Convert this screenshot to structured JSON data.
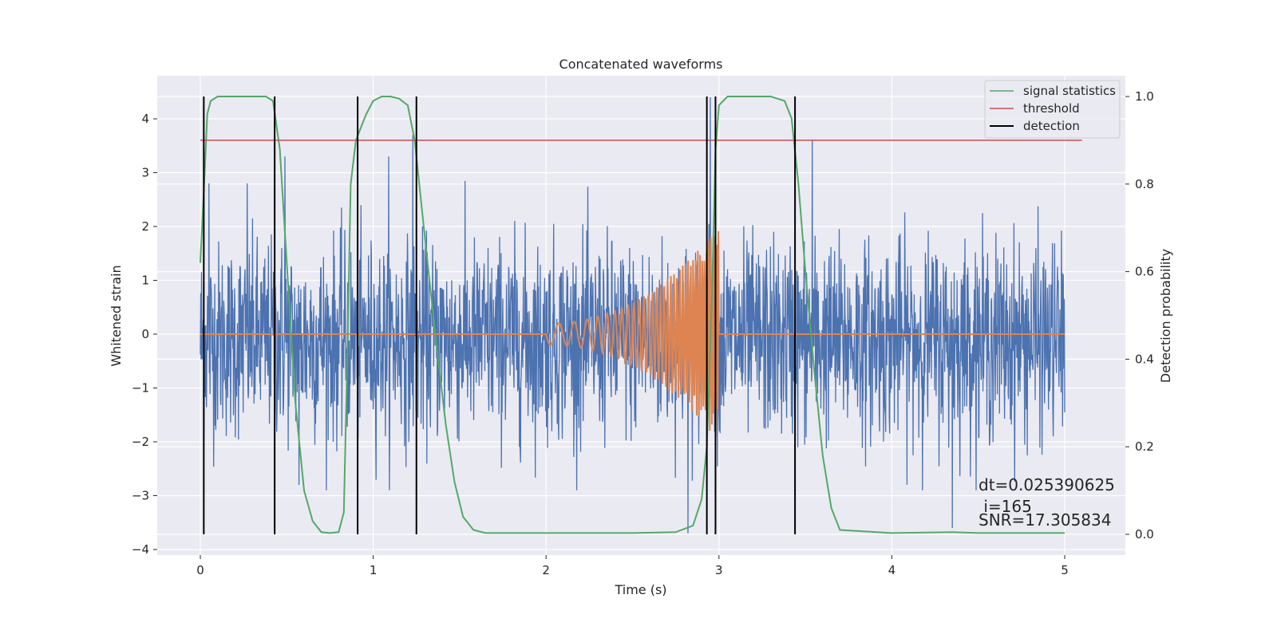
{
  "chart_data": {
    "type": "line",
    "title": "Concatenated waveforms",
    "xlabel": "Time (s)",
    "ylabel": "Whitened strain",
    "y2label": "Detection probability",
    "xlim": [
      -0.25,
      5.35
    ],
    "ylim": [
      -4.1,
      4.7
    ],
    "y2lim": [
      -0.045,
      1.045
    ],
    "xticks": [
      0,
      1,
      2,
      3,
      4,
      5
    ],
    "yticks": [
      -4,
      -3,
      -2,
      -1,
      0,
      1,
      2,
      3,
      4
    ],
    "y2ticks": [
      0.0,
      0.2,
      0.4,
      0.6,
      0.8,
      1.0
    ],
    "xtick_labels": [
      "0",
      "1",
      "2",
      "3",
      "4",
      "5"
    ],
    "ytick_labels": [
      "−4",
      "−3",
      "−2",
      "−1",
      "0",
      "1",
      "2",
      "3",
      "4"
    ],
    "y2tick_labels": [
      "0.0",
      "0.2",
      "0.4",
      "0.6",
      "0.8",
      "1.0"
    ],
    "grid": true,
    "legend_position": "top-right",
    "colors": {
      "strain": "#4c72b0",
      "template": "#dd8452",
      "signal_statistics": "#55a868",
      "threshold": "#c44e52",
      "detection": "#000000",
      "background": "#eaeaf2",
      "grid": "#ffffff"
    },
    "noise": {
      "x_range": [
        0,
        5
      ],
      "typical_amplitude": 1.2,
      "peak_values": [
        {
          "x": 0.05,
          "y": 2.8
        },
        {
          "x": 0.27,
          "y": 2.8
        },
        {
          "x": 0.49,
          "y": 3.3
        },
        {
          "x": 0.57,
          "y": -2.8
        },
        {
          "x": 1.09,
          "y": 3.3
        },
        {
          "x": 1.23,
          "y": 3.7
        },
        {
          "x": 2.95,
          "y": 4.4
        },
        {
          "x": 2.82,
          "y": -3.7
        },
        {
          "x": 3.54,
          "y": 3.6
        },
        {
          "x": 4.35,
          "y": -3.6
        }
      ]
    },
    "template": {
      "baseline": 0.0,
      "chirp_start": 2.0,
      "chirp_end": 3.0,
      "start_amplitude": 0.2,
      "end_amplitude": 2.0
    },
    "series": [
      {
        "name": "signal statistics",
        "axis": "right",
        "x": [
          0.0,
          0.02,
          0.04,
          0.06,
          0.1,
          0.2,
          0.3,
          0.38,
          0.42,
          0.46,
          0.5,
          0.55,
          0.6,
          0.65,
          0.7,
          0.75,
          0.8,
          0.83,
          0.85,
          0.87,
          0.9,
          0.93,
          0.96,
          1.0,
          1.05,
          1.1,
          1.15,
          1.2,
          1.24,
          1.28,
          1.32,
          1.37,
          1.42,
          1.47,
          1.52,
          1.58,
          1.65,
          2.0,
          2.5,
          2.75,
          2.85,
          2.9,
          2.93,
          2.96,
          2.98,
          3.0,
          3.05,
          3.1,
          3.2,
          3.3,
          3.38,
          3.42,
          3.46,
          3.5,
          3.55,
          3.6,
          3.65,
          3.7,
          4.0,
          4.35,
          4.5,
          5.0
        ],
        "y": [
          0.62,
          0.78,
          0.96,
          0.99,
          1.0,
          1.0,
          1.0,
          1.0,
          0.99,
          0.88,
          0.62,
          0.3,
          0.1,
          0.03,
          0.005,
          0.003,
          0.005,
          0.05,
          0.4,
          0.8,
          0.9,
          0.93,
          0.96,
          0.99,
          1.0,
          1.0,
          0.995,
          0.98,
          0.9,
          0.75,
          0.6,
          0.42,
          0.25,
          0.12,
          0.04,
          0.01,
          0.003,
          0.003,
          0.003,
          0.005,
          0.02,
          0.08,
          0.2,
          0.55,
          0.88,
          0.98,
          1.0,
          1.0,
          1.0,
          1.0,
          0.99,
          0.95,
          0.8,
          0.6,
          0.38,
          0.18,
          0.06,
          0.01,
          0.003,
          0.005,
          0.003,
          0.003
        ]
      },
      {
        "name": "threshold",
        "axis": "right",
        "x": [
          0.0,
          5.1
        ],
        "y": [
          0.9,
          0.9
        ]
      },
      {
        "name": "detection",
        "axis": "right",
        "y_range": [
          0.0,
          1.0
        ],
        "x_positions": [
          0.02,
          0.43,
          0.91,
          1.25,
          2.93,
          2.98,
          3.44
        ]
      }
    ],
    "annotations": [
      "dt=0.025390625",
      " i=165",
      "SNR=17.305834"
    ]
  }
}
